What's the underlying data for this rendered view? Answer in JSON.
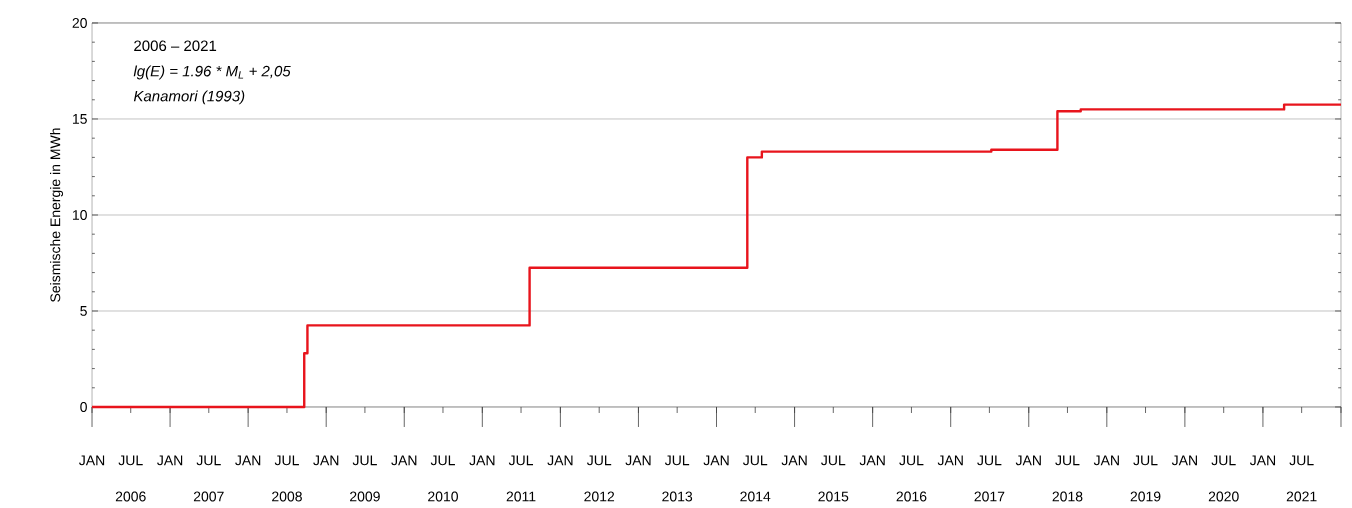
{
  "chart_data": {
    "type": "step",
    "ylabel": "Seismische Energie in MWh",
    "annotations": [
      "2006 – 2021",
      "lg(E) = 1.96 * M$_{L}$ + 2,05",
      "Kanamori (1993)"
    ],
    "x": [
      "2006-01-01",
      "2008-09-20",
      "2008-10-05",
      "2011-08-10",
      "2014-05-25",
      "2014-08-01",
      "2017-07-10",
      "2018-05-15",
      "2018-09-01",
      "2021-04-10",
      "2022-01-01"
    ],
    "values": [
      0,
      2.8,
      4.25,
      7.25,
      13,
      13.3,
      13.4,
      15.4,
      15.5,
      15.75,
      15.75
    ],
    "color": "#e8141c",
    "xlim": [
      "2006-01-01",
      "2022-01-01"
    ],
    "ylim": [
      0,
      20
    ],
    "yticks": [
      0,
      5,
      10,
      15,
      20
    ],
    "grid": "y",
    "xticks": [
      {
        "value": "2006-01-01",
        "label": "JAN"
      },
      {
        "value": "2006-07-01",
        "label": "JUL"
      },
      {
        "value": "2007-01-01",
        "label": "JAN"
      },
      {
        "value": "2007-07-01",
        "label": "JUL"
      },
      {
        "value": "2008-01-01",
        "label": "JAN"
      },
      {
        "value": "2008-07-01",
        "label": "JUL"
      },
      {
        "value": "2009-01-01",
        "label": "JAN"
      },
      {
        "value": "2009-07-01",
        "label": "JUL"
      },
      {
        "value": "2010-01-01",
        "label": "JAN"
      },
      {
        "value": "2010-07-01",
        "label": "JUL"
      },
      {
        "value": "2011-01-01",
        "label": "JAN"
      },
      {
        "value": "2011-07-01",
        "label": "JUL"
      },
      {
        "value": "2012-01-01",
        "label": "JAN"
      },
      {
        "value": "2012-07-01",
        "label": "JUL"
      },
      {
        "value": "2013-01-01",
        "label": "JAN"
      },
      {
        "value": "2013-07-01",
        "label": "JUL"
      },
      {
        "value": "2014-01-01",
        "label": "JAN"
      },
      {
        "value": "2014-07-01",
        "label": "JUL"
      },
      {
        "value": "2015-01-01",
        "label": "JAN"
      },
      {
        "value": "2015-07-01",
        "label": "JUL"
      },
      {
        "value": "2016-01-01",
        "label": "JAN"
      },
      {
        "value": "2016-07-01",
        "label": "JUL"
      },
      {
        "value": "2017-01-01",
        "label": "JAN"
      },
      {
        "value": "2017-07-01",
        "label": "JUL"
      },
      {
        "value": "2018-01-01",
        "label": "JAN"
      },
      {
        "value": "2018-07-01",
        "label": "JUL"
      },
      {
        "value": "2019-01-01",
        "label": "JAN"
      },
      {
        "value": "2019-07-01",
        "label": "JUL"
      },
      {
        "value": "2020-01-01",
        "label": "JAN"
      },
      {
        "value": "2020-07-01",
        "label": "JUL"
      },
      {
        "value": "2021-01-01",
        "label": "JAN"
      },
      {
        "value": "2021-07-01",
        "label": "JUL"
      },
      {
        "value": "2022-01-01",
        "label": null
      }
    ],
    "x2lim": [
      "2006-01-01",
      "2022-01-01"
    ],
    "x2ticks": [
      {
        "value": "2006-07-01",
        "label": "2006"
      },
      {
        "value": "2007-07-01",
        "label": "2007"
      },
      {
        "value": "2008-07-01",
        "label": "2008"
      },
      {
        "value": "2009-07-01",
        "label": "2009"
      },
      {
        "value": "2010-07-01",
        "label": "2010"
      },
      {
        "value": "2011-07-01",
        "label": "2011"
      },
      {
        "value": "2012-07-01",
        "label": "2012"
      },
      {
        "value": "2013-07-01",
        "label": "2013"
      },
      {
        "value": "2014-07-01",
        "label": "2014"
      },
      {
        "value": "2015-07-01",
        "label": "2015"
      },
      {
        "value": "2016-07-01",
        "label": "2016"
      },
      {
        "value": "2017-07-01",
        "label": "2017"
      },
      {
        "value": "2018-07-01",
        "label": "2018"
      },
      {
        "value": "2019-07-01",
        "label": "2019"
      },
      {
        "value": "2020-07-01",
        "label": "2020"
      },
      {
        "value": "2021-07-01",
        "label": "2021"
      }
    ]
  }
}
